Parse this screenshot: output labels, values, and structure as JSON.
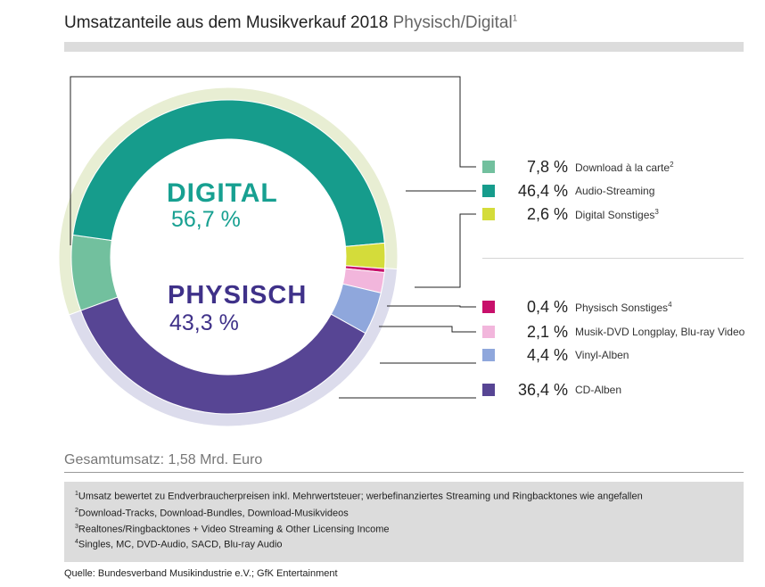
{
  "header": {
    "title": "Umsatzanteile aus dem Musikverkauf 2018",
    "subtitle": "Physisch/Digital",
    "subtitle_note": "1"
  },
  "center": {
    "digital_label": "DIGITAL",
    "digital_value": "56,7 %",
    "physisch_label": "PHYSISCH",
    "physisch_value": "43,3 %"
  },
  "chart_data": {
    "type": "pie",
    "title": "Umsatzanteile aus dem Musikverkauf 2018 Physisch/Digital",
    "groups": [
      {
        "name": "DIGITAL",
        "value": 56.7,
        "color": "#e8eed3"
      },
      {
        "name": "PHYSISCH",
        "value": 43.3,
        "color": "#dcdcec"
      }
    ],
    "slices": [
      {
        "label": "Download à la carte",
        "value": 7.8,
        "group": "DIGITAL",
        "color": "#72c09e"
      },
      {
        "label": "Audio-Streaming",
        "value": 46.4,
        "group": "DIGITAL",
        "color": "#169c8c"
      },
      {
        "label": "Digital Sonstiges",
        "value": 2.6,
        "group": "DIGITAL",
        "color": "#d4dc3a"
      },
      {
        "label": "Physisch Sonstiges",
        "value": 0.4,
        "group": "PHYSISCH",
        "color": "#c8106b"
      },
      {
        "label": "Musik-DVD Longplay, Blu-ray Video",
        "value": 2.1,
        "group": "PHYSISCH",
        "color": "#f2b6dc"
      },
      {
        "label": "Vinyl-Alben",
        "value": 4.4,
        "group": "PHYSISCH",
        "color": "#8fa7dc"
      },
      {
        "label": "CD-Alben",
        "value": 36.4,
        "group": "PHYSISCH",
        "color": "#574594"
      }
    ]
  },
  "legend": [
    {
      "value": "7,8 %",
      "label": "Download à la carte",
      "note": "2",
      "color": "#72c09e"
    },
    {
      "value": "46,4 %",
      "label": "Audio-Streaming",
      "note": "",
      "color": "#169c8c"
    },
    {
      "value": "2,6 %",
      "label": "Digital Sonstiges",
      "note": "3",
      "color": "#d4dc3a"
    },
    {
      "value": "0,4 %",
      "label": "Physisch Sonstiges",
      "note": "4",
      "color": "#c8106b"
    },
    {
      "value": "2,1 %",
      "label": "Musik-DVD Longplay, Blu-ray Video",
      "note": "",
      "color": "#f2b6dc"
    },
    {
      "value": "4,4 %",
      "label": "Vinyl-Alben",
      "note": "",
      "color": "#8fa7dc"
    },
    {
      "value": "36,4 %",
      "label": "CD-Alben",
      "note": "",
      "color": "#574594"
    }
  ],
  "total": "Gesamtumsatz: 1,58 Mrd. Euro",
  "footnotes": [
    {
      "num": "1",
      "text": "Umsatz bewertet zu Endverbraucherpreisen inkl. Mehrwertsteuer; werbefinanziertes Streaming und Ringbacktones wie angefallen"
    },
    {
      "num": "2",
      "text": "Download-Tracks, Download-Bundles, Download-Musikvideos"
    },
    {
      "num": "3",
      "text": "Realtones/Ringbacktones + Video Streaming & Other Licensing Income"
    },
    {
      "num": "4",
      "text": "Singles, MC, DVD-Audio, SACD, Blu-ray Audio"
    }
  ],
  "source": "Quelle: Bundesverband Musikindustrie e.V.; GfK Entertainment",
  "colors": {
    "digital_text": "#17a091",
    "physisch_text": "#3f3189"
  }
}
